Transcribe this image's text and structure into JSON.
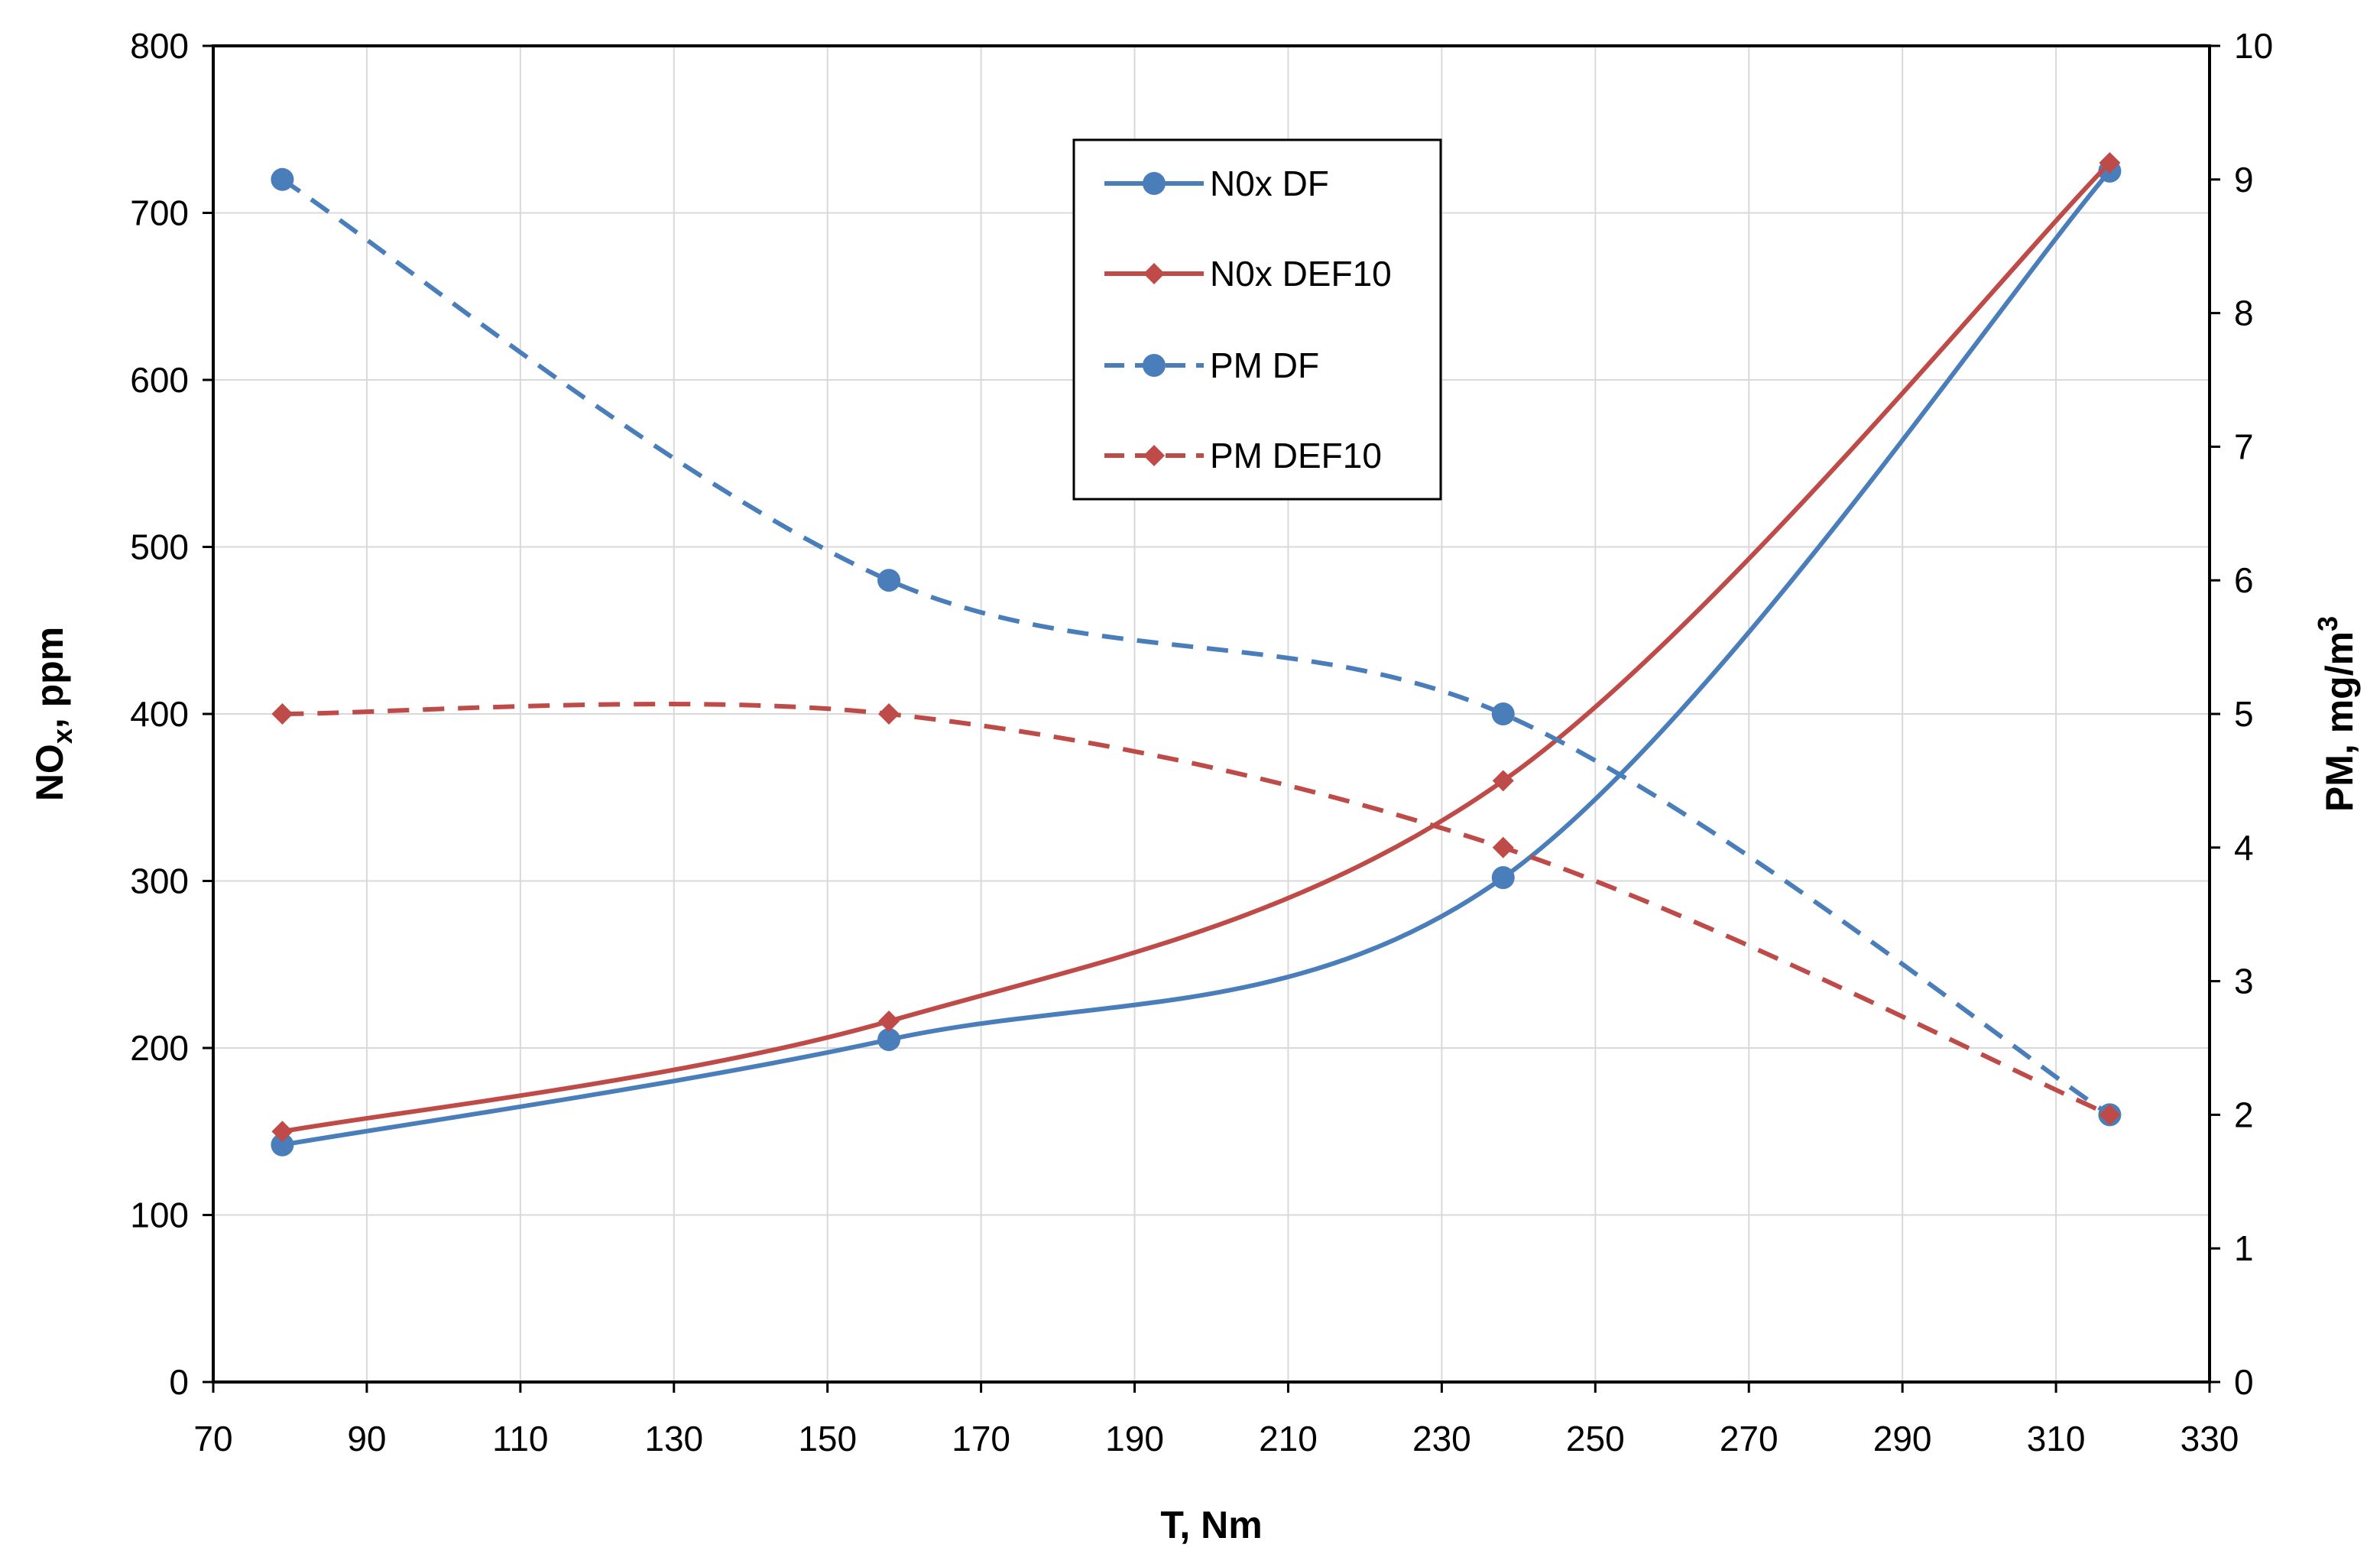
{
  "chart_data": {
    "type": "line",
    "x": [
      79,
      158,
      238,
      317
    ],
    "xlabel": "T, Nm",
    "ylabel_left": {
      "main": "NO",
      "sub": "x",
      "rest": ", ppm"
    },
    "ylabel_right": {
      "main": "PM, mg/m",
      "sup": "3"
    },
    "xlim": [
      70,
      330
    ],
    "ylim_left": [
      0,
      800
    ],
    "ylim_right": [
      0,
      10
    ],
    "x_ticks": [
      70,
      90,
      110,
      130,
      150,
      170,
      190,
      210,
      230,
      250,
      270,
      290,
      310,
      330
    ],
    "y_ticks_left": [
      0,
      100,
      200,
      300,
      400,
      500,
      600,
      700,
      800
    ],
    "y_ticks_right": [
      0,
      1,
      2,
      3,
      4,
      5,
      6,
      7,
      8,
      9,
      10
    ],
    "grid": true,
    "legend_position": "top-center",
    "series": [
      {
        "name": "N0x DF",
        "axis": "left",
        "values": [
          142,
          205,
          302,
          725
        ],
        "color": "#4a7ebb",
        "dash": false,
        "marker": "circle"
      },
      {
        "name": "N0x DEF10",
        "axis": "left",
        "values": [
          150,
          216,
          360,
          730
        ],
        "color": "#be4b48",
        "dash": false,
        "marker": "diamond"
      },
      {
        "name": "PM DF",
        "axis": "right",
        "values": [
          9,
          6,
          5,
          2
        ],
        "color": "#4a7ebb",
        "dash": true,
        "marker": "circle"
      },
      {
        "name": "PM DEF10",
        "axis": "right",
        "values": [
          5,
          5,
          4,
          2
        ],
        "color": "#be4b48",
        "dash": true,
        "marker": "diamond"
      }
    ]
  }
}
